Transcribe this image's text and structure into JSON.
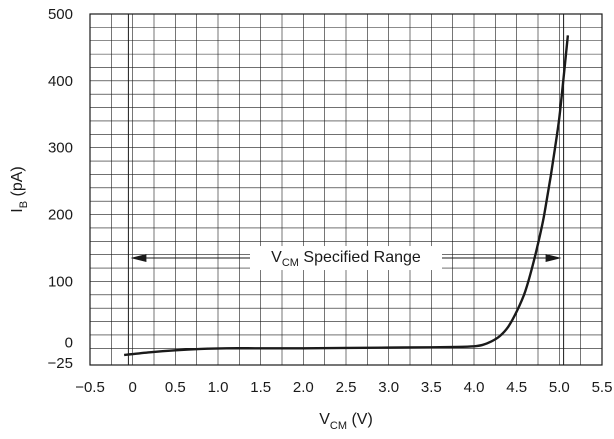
{
  "chart_data": {
    "type": "line",
    "title": "",
    "xlabel": {
      "main": "V",
      "sub": "CM",
      "unit": " (V)"
    },
    "ylabel": {
      "main": "I",
      "sub": "B",
      "unit": " (pA)"
    },
    "xlim": [
      -0.5,
      5.5
    ],
    "ylim": [
      -25,
      500
    ],
    "x_ticks": [
      -0.5,
      0,
      0.5,
      1.0,
      1.5,
      2.0,
      2.5,
      3.0,
      3.5,
      4.0,
      4.5,
      5.0,
      5.5
    ],
    "x_tick_labels": [
      "−0.5",
      "0",
      "0.5",
      "1.0",
      "1.5",
      "2.0",
      "2.5",
      "3.0",
      "3.5",
      "4.0",
      "4.5",
      "5.0",
      "5.5"
    ],
    "y_ticks": [
      -25,
      0,
      100,
      200,
      300,
      400,
      500
    ],
    "y_tick_labels": [
      "−25",
      "0",
      "100",
      "200",
      "300",
      "400",
      "500"
    ],
    "grid": true,
    "series": [
      {
        "color": "#1a1a1a",
        "x": [
          -0.1,
          0.2,
          0.5,
          0.8,
          1.1,
          1.5,
          2.0,
          2.5,
          3.0,
          3.5,
          3.8,
          4.0,
          4.1,
          4.2,
          4.3,
          4.4,
          4.5,
          4.6,
          4.7,
          4.8,
          4.85,
          4.9,
          4.95,
          5.0,
          5.05,
          5.1
        ],
        "y": [
          -10,
          -6,
          -3,
          -1,
          0,
          0,
          0,
          0.5,
          1,
          1.5,
          2,
          3,
          5,
          10,
          18,
          32,
          55,
          85,
          130,
          185,
          220,
          258,
          300,
          345,
          405,
          468
        ]
      }
    ],
    "annotation": {
      "main": "V",
      "sub": "CM",
      "rest": " Specified Range",
      "x_start": -0.05,
      "x_end": 5.05,
      "y": 135,
      "guide_lines_x": [
        -0.05,
        5.05
      ]
    }
  }
}
